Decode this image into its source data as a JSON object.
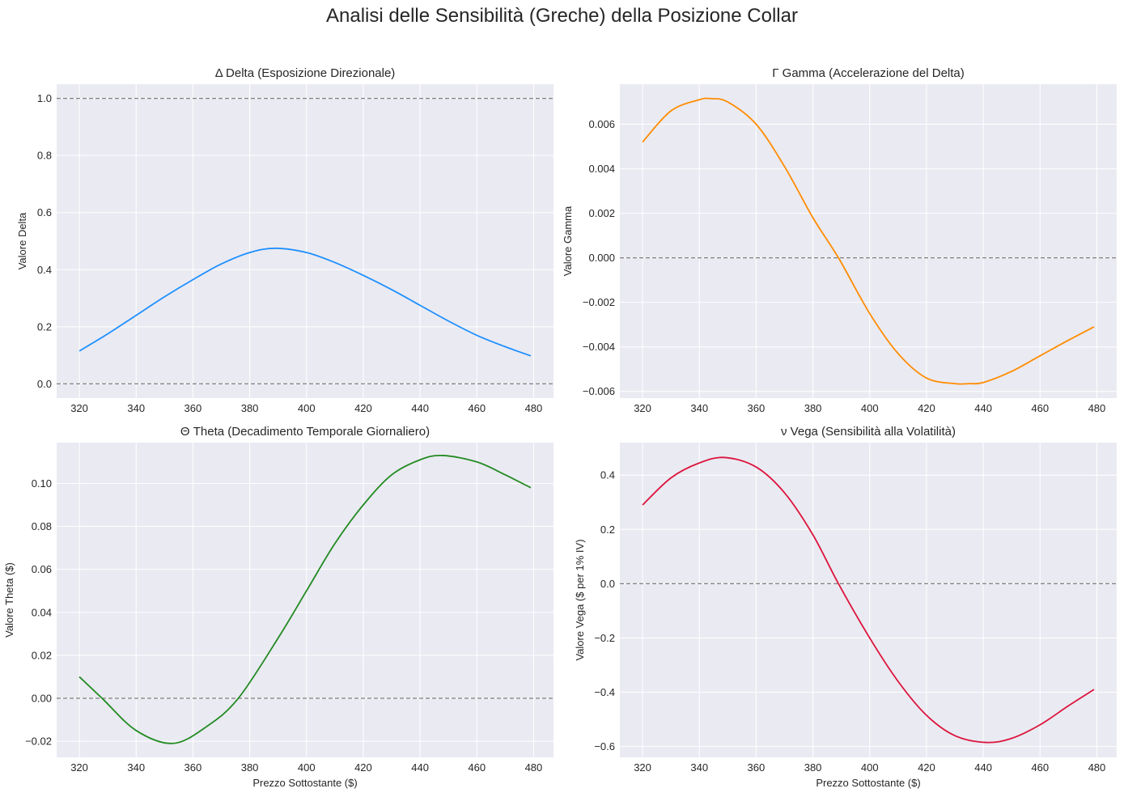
{
  "suptitle": "Analisi delle Sensibilità (Greche) della Posizione Collar",
  "chart_data": [
    {
      "type": "line",
      "title": "Δ Delta (Esposizione Direzionale)",
      "xlabel": "",
      "ylabel": "Valore Delta",
      "xlim": [
        312,
        487
      ],
      "ylim": [
        -0.05,
        1.05
      ],
      "xticks": [
        320,
        340,
        360,
        380,
        400,
        420,
        440,
        460,
        480
      ],
      "yticks": [
        0.0,
        0.2,
        0.4,
        0.6,
        0.8,
        1.0
      ],
      "ytick_labels": [
        "0.0",
        "0.2",
        "0.4",
        "0.6",
        "0.8",
        "1.0"
      ],
      "reference_lines": [
        0.0,
        1.0
      ],
      "color": "#1e90ff",
      "x": [
        320,
        330,
        340,
        350,
        360,
        370,
        380,
        389,
        400,
        410,
        420,
        430,
        440,
        450,
        460,
        470,
        479
      ],
      "y": [
        0.115,
        0.175,
        0.24,
        0.305,
        0.365,
        0.42,
        0.46,
        0.475,
        0.46,
        0.425,
        0.38,
        0.33,
        0.275,
        0.22,
        0.17,
        0.13,
        0.098
      ]
    },
    {
      "type": "line",
      "title": "Γ Gamma (Accelerazione del Delta)",
      "xlabel": "",
      "ylabel": "Valore Gamma",
      "xlim": [
        312,
        487
      ],
      "ylim": [
        -0.0063,
        0.0078
      ],
      "xticks": [
        320,
        340,
        360,
        380,
        400,
        420,
        440,
        460,
        480
      ],
      "yticks": [
        -0.006,
        -0.004,
        -0.002,
        0.0,
        0.002,
        0.004,
        0.006
      ],
      "ytick_labels": [
        "−0.006",
        "−0.004",
        "−0.002",
        "0.000",
        "0.002",
        "0.004",
        "0.006"
      ],
      "reference_lines": [
        0.0
      ],
      "color": "#ff8c00",
      "x": [
        320,
        330,
        340,
        344,
        350,
        360,
        370,
        380,
        389,
        400,
        410,
        420,
        430,
        435,
        440,
        450,
        460,
        470,
        479
      ],
      "y": [
        0.0052,
        0.0066,
        0.0071,
        0.00715,
        0.007,
        0.006,
        0.0041,
        0.0018,
        0.0,
        -0.0025,
        -0.0043,
        -0.0054,
        -0.00565,
        -0.00565,
        -0.0056,
        -0.0051,
        -0.0044,
        -0.0037,
        -0.0031
      ]
    },
    {
      "type": "line",
      "title": "Θ Theta (Decadimento Temporale Giornaliero)",
      "xlabel": "Prezzo Sottostante ($)",
      "ylabel": "Valore Theta ($)",
      "xlim": [
        312,
        487
      ],
      "ylim": [
        -0.0275,
        0.119
      ],
      "xticks": [
        320,
        340,
        360,
        380,
        400,
        420,
        440,
        460,
        480
      ],
      "yticks": [
        -0.02,
        0.0,
        0.02,
        0.04,
        0.06,
        0.08,
        0.1
      ],
      "ytick_labels": [
        "−0.02",
        "0.00",
        "0.02",
        "0.04",
        "0.06",
        "0.08",
        "0.10"
      ],
      "reference_lines": [
        0.0
      ],
      "color": "#228b22",
      "x": [
        320,
        328,
        340,
        353,
        365,
        376,
        390,
        400,
        410,
        420,
        430,
        440,
        448,
        460,
        470,
        479
      ],
      "y": [
        0.01,
        0.0,
        -0.015,
        -0.021,
        -0.013,
        0.0,
        0.028,
        0.05,
        0.072,
        0.09,
        0.104,
        0.111,
        0.113,
        0.11,
        0.104,
        0.098
      ]
    },
    {
      "type": "line",
      "title": "ν Vega (Sensibilità alla Volatilità)",
      "xlabel": "Prezzo Sottostante ($)",
      "ylabel": "Valore Vega ($ per 1% IV)",
      "xlim": [
        312,
        487
      ],
      "ylim": [
        -0.64,
        0.52
      ],
      "xticks": [
        320,
        340,
        360,
        380,
        400,
        420,
        440,
        460,
        480
      ],
      "yticks": [
        -0.6,
        -0.4,
        -0.2,
        0.0,
        0.2,
        0.4
      ],
      "ytick_labels": [
        "−0.6",
        "−0.4",
        "−0.2",
        "0.0",
        "0.2",
        "0.4"
      ],
      "reference_lines": [
        0.0
      ],
      "color": "#dc143c",
      "x": [
        320,
        330,
        340,
        349,
        360,
        370,
        380,
        389,
        400,
        410,
        420,
        430,
        441,
        450,
        460,
        470,
        479
      ],
      "y": [
        0.29,
        0.39,
        0.445,
        0.465,
        0.43,
        0.335,
        0.18,
        0.0,
        -0.2,
        -0.36,
        -0.485,
        -0.56,
        -0.585,
        -0.57,
        -0.52,
        -0.45,
        -0.39
      ]
    }
  ]
}
